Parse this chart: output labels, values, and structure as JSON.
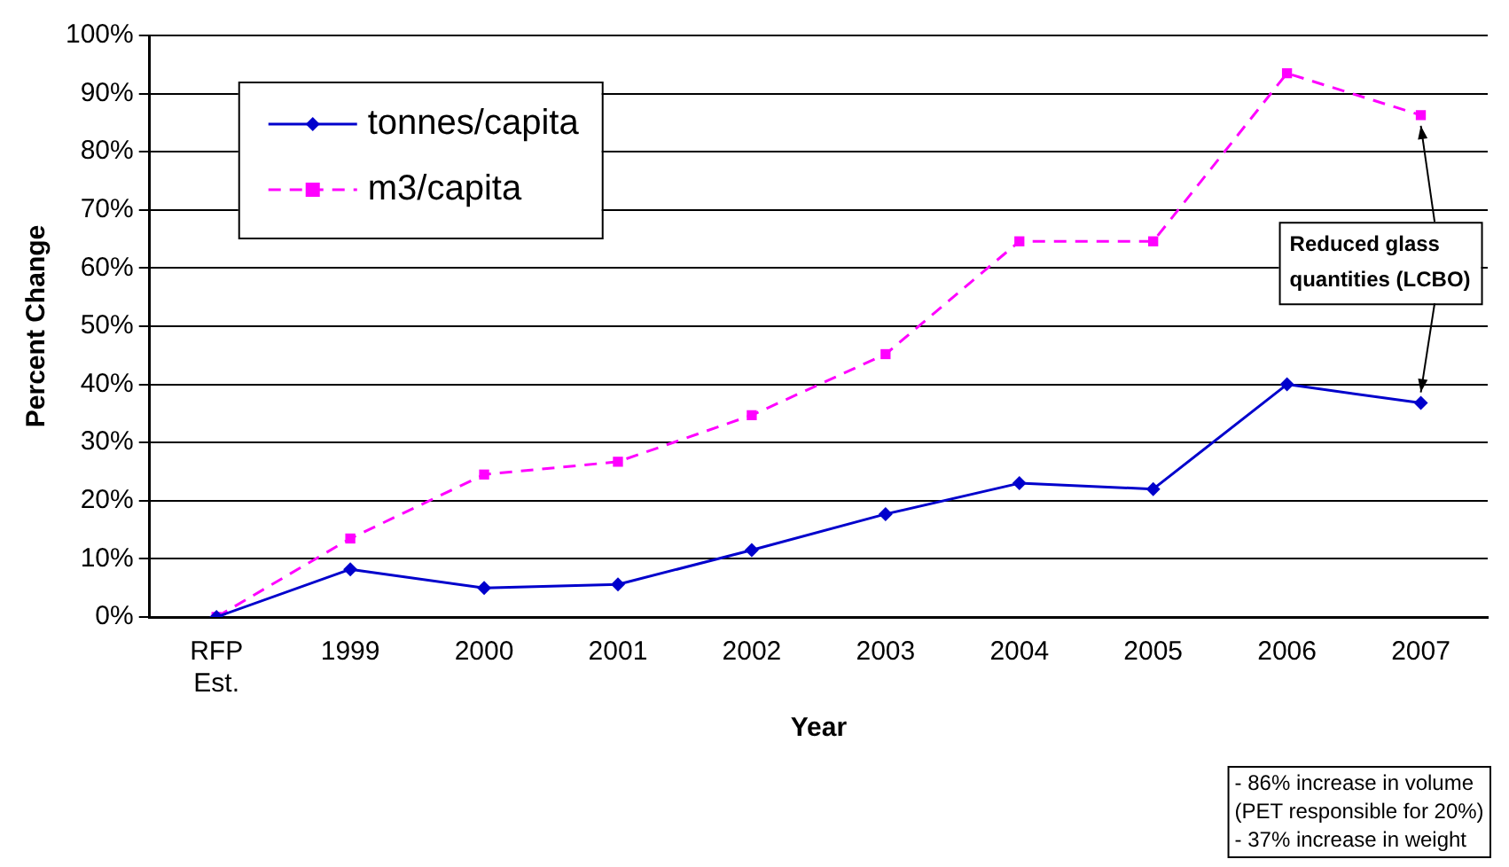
{
  "chart_data": {
    "type": "line",
    "xlabel": "Year",
    "ylabel": "Percent Change",
    "categories": [
      "RFP Est.",
      "1999",
      "2000",
      "2001",
      "2002",
      "2003",
      "2004",
      "2005",
      "2006",
      "2007"
    ],
    "series": [
      {
        "name": "tonnes/capita",
        "color": "#0000cc",
        "marker": "diamond",
        "line_style": "solid",
        "values": [
          0,
          8.2,
          5.0,
          5.6,
          11.5,
          17.7,
          23.0,
          22.0,
          40.0,
          36.8
        ]
      },
      {
        "name": "m3/capita",
        "color": "#ff00ff",
        "marker": "square",
        "line_style": "dashed",
        "values": [
          0,
          13.5,
          24.5,
          26.7,
          34.7,
          45.2,
          64.6,
          64.6,
          93.5,
          86.3
        ]
      }
    ],
    "ylim": [
      0,
      100
    ],
    "yticks": [
      {
        "value": 0,
        "label": "0%"
      },
      {
        "value": 10,
        "label": "10%"
      },
      {
        "value": 20,
        "label": "20%"
      },
      {
        "value": 30,
        "label": "30%"
      },
      {
        "value": 40,
        "label": "40%"
      },
      {
        "value": 50,
        "label": "50%"
      },
      {
        "value": 60,
        "label": "60%"
      },
      {
        "value": 70,
        "label": "70%"
      },
      {
        "value": 80,
        "label": "80%"
      },
      {
        "value": 90,
        "label": "90%"
      },
      {
        "value": 100,
        "label": "100%"
      }
    ],
    "grid": "y",
    "legend": "top left",
    "annotations": [
      {
        "text": "Reduced glass quantities (LCBO)",
        "x": "2007",
        "y": 86.3
      },
      "- 86% increase in volume (PET responsible for 20%) - 37% increase in weight"
    ]
  }
}
